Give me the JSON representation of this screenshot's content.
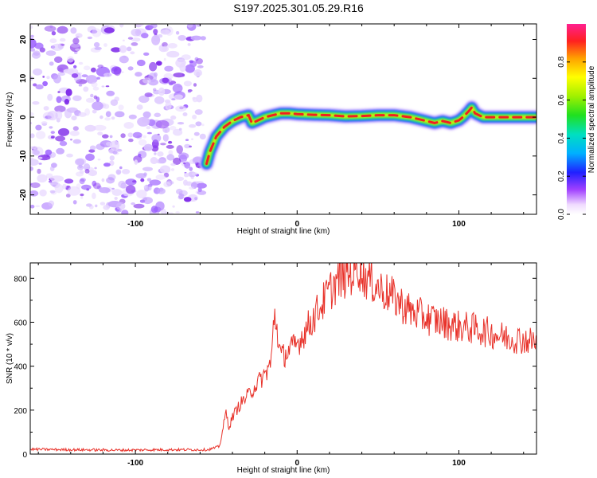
{
  "title": "S197.2025.301.05.29.R16",
  "chart_data": [
    {
      "type": "heatmap",
      "name": "spectrogram",
      "xlabel": "Height of straight line (km)",
      "ylabel": "Frequency (Hz)",
      "xlim": [
        -165,
        148
      ],
      "ylim": [
        -25,
        24
      ],
      "xticks": [
        -100,
        0,
        100
      ],
      "yticks": [
        -20,
        -10,
        0,
        10,
        20
      ],
      "noise_region_x": [
        -165,
        -58
      ],
      "ridge": {
        "x": [
          -56,
          -54,
          -50,
          -45,
          -40,
          -35,
          -30,
          -28,
          -25,
          -20,
          -15,
          -10,
          -5,
          0,
          10,
          20,
          30,
          40,
          50,
          60,
          70,
          80,
          85,
          90,
          95,
          100,
          103,
          106,
          108,
          110,
          115,
          120,
          130,
          140,
          148
        ],
        "y": [
          -12,
          -9,
          -5,
          -2.5,
          -1,
          0,
          0.5,
          -1.5,
          -1,
          0,
          0.5,
          1,
          1,
          0.8,
          0.6,
          0.5,
          0.2,
          0.3,
          0.5,
          0.5,
          0,
          -1,
          -1.5,
          -1,
          -1.5,
          -0.8,
          0.2,
          1.5,
          2.5,
          1,
          0,
          0,
          0,
          0,
          0
        ]
      },
      "colorbar": {
        "label": "Normalized spectral amplitude",
        "range": [
          0,
          1
        ],
        "ticks": [
          0.0,
          0.2,
          0.4,
          0.6,
          0.8
        ]
      }
    },
    {
      "type": "line",
      "name": "snr",
      "xlabel": "Height of straight line (km)",
      "ylabel": "SNR (10 * v/v)",
      "xlim": [
        -165,
        148
      ],
      "ylim": [
        0,
        870
      ],
      "xticks": [
        -100,
        0,
        100
      ],
      "yticks": [
        0,
        200,
        400,
        600,
        800
      ],
      "color": "#e8322a",
      "series": [
        {
          "name": "SNR",
          "x": [
            -165,
            -140,
            -110,
            -80,
            -55,
            -48,
            -46,
            -44,
            -42,
            -40,
            -35,
            -30,
            -25,
            -20,
            -16,
            -14,
            -10,
            -5,
            0,
            5,
            10,
            15,
            20,
            25,
            30,
            35,
            38,
            40,
            45,
            50,
            60,
            70,
            80,
            90,
            100,
            110,
            120,
            130,
            140,
            148
          ],
          "y": [
            22,
            20,
            18,
            20,
            20,
            35,
            110,
            190,
            120,
            170,
            230,
            270,
            320,
            360,
            420,
            650,
            440,
            470,
            500,
            560,
            620,
            680,
            740,
            790,
            810,
            830,
            860,
            820,
            790,
            760,
            710,
            650,
            620,
            600,
            580,
            570,
            550,
            530,
            520,
            510
          ]
        }
      ]
    }
  ]
}
